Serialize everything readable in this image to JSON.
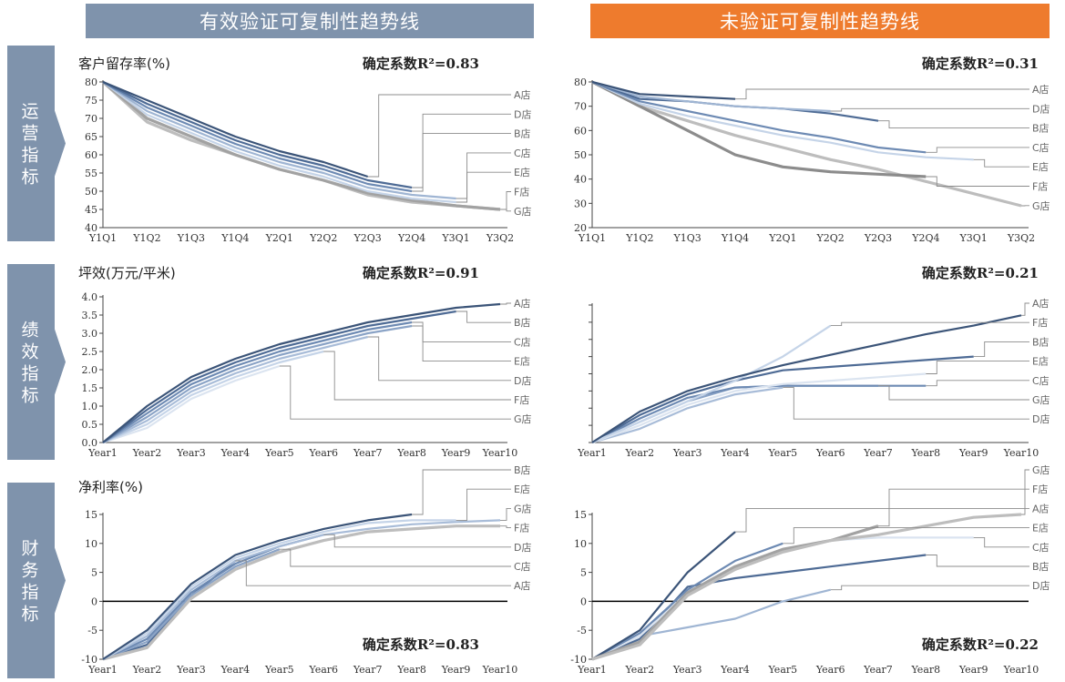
{
  "headers": {
    "left": "有效验证可复制性趋势线",
    "right": "未验证可复制性趋势线"
  },
  "row_labels": [
    "运营指标",
    "绩效指标",
    "财务指标"
  ],
  "colors": {
    "header_left": "#7f93ac",
    "header_right": "#ee7b2d",
    "side_band": "#7f93ac",
    "leader_line": "#8c8c8c",
    "zero_axis": "#000000"
  },
  "chart_data": [
    {
      "id": "ops-valid",
      "type": "line",
      "title": "客户留存率(%)",
      "annotation": "确定系数R²=0.83",
      "categories": [
        "Y1Q1",
        "Y1Q2",
        "Y1Q3",
        "Y1Q4",
        "Y2Q1",
        "Y2Q2",
        "Y2Q3",
        "Y2Q4",
        "Y3Q1",
        "Y3Q2"
      ],
      "ylim": [
        40,
        80
      ],
      "yticks": [
        40,
        45,
        50,
        55,
        60,
        65,
        70,
        75,
        80
      ],
      "series": [
        {
          "name": "A店",
          "color": "#3b5478",
          "values": [
            80,
            75,
            70,
            65,
            61,
            58,
            54,
            null,
            null,
            null
          ]
        },
        {
          "name": "D店",
          "color": "#4e6b95",
          "values": [
            80,
            74,
            69,
            64,
            60,
            57,
            53,
            51,
            null,
            null
          ]
        },
        {
          "name": "B店",
          "color": "#6d8ab3",
          "values": [
            80,
            73,
            68,
            63,
            59,
            56,
            52,
            50,
            null,
            null
          ]
        },
        {
          "name": "C店",
          "color": "#9fb5d3",
          "values": [
            80,
            72,
            67,
            62,
            58,
            55,
            51,
            49,
            48,
            null
          ]
        },
        {
          "name": "E店",
          "color": "#c5d4e8",
          "values": [
            80,
            71,
            66,
            61,
            57,
            54,
            50,
            48,
            47,
            null
          ]
        },
        {
          "name": "F店",
          "color": "#a2a2a2",
          "values": [
            80,
            70,
            65,
            60,
            56,
            53,
            49.5,
            47.5,
            46,
            45
          ]
        },
        {
          "name": "G店",
          "color": "#bdbdbd",
          "values": [
            80,
            69,
            64,
            60,
            56,
            53,
            49,
            47,
            46,
            45
          ]
        }
      ],
      "legend_order": [
        "A店",
        "D店",
        "B店",
        "C店",
        "E店",
        "F店",
        "G店"
      ]
    },
    {
      "id": "ops-unvalid",
      "type": "line",
      "annotation": "确定系数R²=0.31",
      "categories": [
        "Y1Q1",
        "Y1Q2",
        "Y1Q3",
        "Y1Q4",
        "Y2Q1",
        "Y2Q2",
        "Y2Q3",
        "Y2Q4",
        "Y3Q1",
        "Y3Q2"
      ],
      "ylim": [
        20,
        80
      ],
      "yticks": [
        20,
        30,
        40,
        50,
        60,
        70,
        80
      ],
      "series": [
        {
          "name": "A店",
          "color": "#3b5478",
          "values": [
            80,
            75,
            74,
            73,
            null,
            null,
            null,
            null,
            null,
            null
          ]
        },
        {
          "name": "D店",
          "color": "#9fb5d3",
          "values": [
            80,
            74,
            72,
            70,
            69,
            68,
            null,
            null,
            null,
            null
          ]
        },
        {
          "name": "B店",
          "color": "#4e6b95",
          "values": [
            80,
            73,
            72,
            70,
            69,
            67,
            64,
            null,
            null,
            null
          ]
        },
        {
          "name": "C店",
          "color": "#6d8ab3",
          "values": [
            80,
            72,
            68,
            64,
            60,
            57,
            53,
            51,
            null,
            null
          ]
        },
        {
          "name": "E店",
          "color": "#c5d4e8",
          "values": [
            80,
            71,
            66,
            62,
            58,
            55,
            51,
            49,
            48,
            null
          ]
        },
        {
          "name": "F店",
          "color": "#8c8c8c",
          "values": [
            80,
            70,
            60,
            50,
            45,
            43,
            42,
            41,
            null,
            null
          ]
        },
        {
          "name": "G店",
          "color": "#bdbdbd",
          "values": [
            80,
            70,
            64,
            58,
            53,
            48,
            44,
            39,
            34,
            29
          ]
        }
      ],
      "legend_order": [
        "A店",
        "D店",
        "B店",
        "C店",
        "E店",
        "F店",
        "G店"
      ]
    },
    {
      "id": "perf-valid",
      "type": "line",
      "title": "坪效(万元/平米)",
      "annotation": "确定系数R²=0.91",
      "categories": [
        "Year1",
        "Year2",
        "Year3",
        "Year4",
        "Year5",
        "Year6",
        "Year7",
        "Year8",
        "Year9",
        "Year10"
      ],
      "ylim": [
        0,
        4
      ],
      "yticks": [
        0,
        0.5,
        1,
        1.5,
        2,
        2.5,
        3,
        3.5,
        4
      ],
      "ytick_labels": [
        "0.0",
        "0.5",
        "1.0",
        "1.5",
        "2.0",
        "2.5",
        "3.0",
        "3.5",
        "4.0"
      ],
      "series": [
        {
          "name": "A店",
          "color": "#3b5478",
          "values": [
            0,
            1.0,
            1.8,
            2.3,
            2.7,
            3.0,
            3.3,
            3.5,
            3.7,
            3.8
          ]
        },
        {
          "name": "B店",
          "color": "#4e6b95",
          "values": [
            0,
            0.9,
            1.7,
            2.2,
            2.6,
            2.9,
            3.2,
            3.4,
            3.6,
            null
          ]
        },
        {
          "name": "C店",
          "color": "#6d8ab3",
          "values": [
            0,
            0.8,
            1.6,
            2.1,
            2.5,
            2.8,
            3.1,
            3.3,
            null,
            null
          ]
        },
        {
          "name": "E店",
          "color": "#8aa3c6",
          "values": [
            0,
            0.7,
            1.5,
            2.0,
            2.4,
            2.7,
            3.0,
            3.2,
            null,
            null
          ]
        },
        {
          "name": "D店",
          "color": "#a8bcd8",
          "values": [
            0,
            0.6,
            1.4,
            1.9,
            2.3,
            2.6,
            2.9,
            null,
            null,
            null
          ]
        },
        {
          "name": "F店",
          "color": "#c5d4e8",
          "values": [
            0,
            0.5,
            1.3,
            1.8,
            2.2,
            2.5,
            null,
            null,
            null,
            null
          ]
        },
        {
          "name": "G店",
          "color": "#dbe4f0",
          "values": [
            0,
            0.4,
            1.2,
            1.7,
            2.1,
            null,
            null,
            null,
            null,
            null
          ]
        }
      ],
      "legend_order": [
        "A店",
        "B店",
        "C店",
        "E店",
        "D店",
        "F店",
        "G店"
      ]
    },
    {
      "id": "perf-unvalid",
      "type": "line",
      "annotation": "确定系数R²=0.21",
      "categories": [
        "Year1",
        "Year2",
        "Year3",
        "Year4",
        "Year5",
        "Year6",
        "Year7",
        "Year8",
        "Year9",
        "Year10"
      ],
      "ylim": [
        0,
        4
      ],
      "yticks": [
        0,
        0.5,
        1,
        1.5,
        2,
        2.5,
        3,
        3.5,
        4
      ],
      "ytick_labels": [
        "",
        "",
        "",
        "",
        "",
        "",
        "",
        "",
        ""
      ],
      "series": [
        {
          "name": "A店",
          "color": "#3b5478",
          "values": [
            0,
            0.9,
            1.5,
            1.9,
            2.25,
            2.55,
            2.85,
            3.15,
            3.4,
            3.7
          ]
        },
        {
          "name": "F店",
          "color": "#c5d4e8",
          "values": [
            0,
            0.6,
            1.2,
            1.8,
            2.5,
            3.4,
            null,
            null,
            null,
            null
          ]
        },
        {
          "name": "B店",
          "color": "#4e6b95",
          "values": [
            0,
            0.8,
            1.4,
            1.8,
            2.1,
            2.2,
            2.3,
            2.4,
            2.5,
            null
          ]
        },
        {
          "name": "E店",
          "color": "#dbe4f0",
          "values": [
            0,
            0.5,
            1.1,
            1.5,
            1.7,
            1.8,
            1.9,
            2.0,
            null,
            null
          ]
        },
        {
          "name": "C店",
          "color": "#6d8ab3",
          "values": [
            0,
            0.7,
            1.3,
            1.6,
            1.65,
            1.65,
            1.65,
            1.65,
            null,
            null
          ]
        },
        {
          "name": "G店",
          "color": "#8aa3c6",
          "values": [
            0,
            0.6,
            1.2,
            1.6,
            1.65,
            1.65,
            1.65,
            null,
            null,
            null
          ]
        },
        {
          "name": "D店",
          "color": "#a8bcd8",
          "values": [
            0,
            0.4,
            1.0,
            1.4,
            1.6,
            null,
            null,
            null,
            null,
            null
          ]
        }
      ],
      "legend_order": [
        "A店",
        "F店",
        "B店",
        "E店",
        "C店",
        "G店",
        "D店"
      ]
    },
    {
      "id": "fin-valid",
      "type": "line",
      "title": "净利率(%)",
      "annotation": "确定系数R²=0.83",
      "categories": [
        "Year1",
        "Year2",
        "Year3",
        "Year4",
        "Year5",
        "Year6",
        "Year7",
        "Year8",
        "Year9",
        "Year10"
      ],
      "ylim": [
        -10,
        15
      ],
      "yticks": [
        -10,
        -5,
        0,
        5,
        10,
        15
      ],
      "series": [
        {
          "name": "B店",
          "color": "#3b5478",
          "values": [
            -10,
            -5,
            3,
            8,
            10.5,
            12.5,
            14,
            15,
            null,
            null
          ]
        },
        {
          "name": "E店",
          "color": "#c5d4e8",
          "values": [
            -10,
            -5.5,
            2.5,
            7.5,
            10,
            12,
            13.5,
            14,
            14,
            null
          ]
        },
        {
          "name": "G店",
          "color": "#a8bcd8",
          "values": [
            -10,
            -6,
            2,
            7,
            9.5,
            11.5,
            12.5,
            13.3,
            13.7,
            14
          ]
        },
        {
          "name": "F店",
          "color": "#bdbdbd",
          "values": [
            -10,
            -8,
            0.5,
            5.5,
            8.5,
            10.5,
            12,
            12.5,
            13,
            13
          ]
        },
        {
          "name": "D店",
          "color": "#6d8ab3",
          "values": [
            -10,
            -6.5,
            1.5,
            6.5,
            9.5,
            11.5,
            null,
            null,
            null,
            null
          ]
        },
        {
          "name": "C店",
          "color": "#8aa3c6",
          "values": [
            -10,
            -7,
            1,
            6,
            9,
            null,
            null,
            null,
            null,
            null
          ]
        },
        {
          "name": "A店",
          "color": "#4e6b95",
          "values": [
            -10,
            -7.5,
            1,
            7,
            null,
            null,
            null,
            null,
            null,
            null
          ]
        }
      ],
      "legend_order": [
        "B店",
        "E店",
        "G店",
        "F店",
        "D店",
        "C店",
        "A店"
      ]
    },
    {
      "id": "fin-unvalid",
      "type": "line",
      "annotation": "确定系数R²=0.22",
      "categories": [
        "Year1",
        "Year2",
        "Year3",
        "Year4",
        "Year5",
        "Year6",
        "Year7",
        "Year8",
        "Year9",
        "Year10"
      ],
      "ylim": [
        -10,
        15
      ],
      "yticks": [
        -10,
        -5,
        0,
        5,
        10,
        15
      ],
      "series": [
        {
          "name": "G店",
          "color": "#bdbdbd",
          "values": [
            -10,
            -7.5,
            1,
            5.5,
            8.5,
            10.5,
            11.5,
            13,
            14.5,
            15
          ]
        },
        {
          "name": "F店",
          "color": "#a2a2a2",
          "values": [
            -10,
            -7,
            1.5,
            6,
            9,
            10.5,
            13,
            null,
            null,
            null
          ]
        },
        {
          "name": "A店",
          "color": "#3b5478",
          "values": [
            -10,
            -5,
            5,
            12,
            null,
            null,
            null,
            null,
            null,
            null
          ]
        },
        {
          "name": "E店",
          "color": "#6d8ab3",
          "values": [
            -10,
            -5.5,
            2,
            7,
            10,
            null,
            null,
            null,
            null,
            null
          ]
        },
        {
          "name": "C店",
          "color": "#dbe4f0",
          "values": [
            -10,
            -6,
            1.5,
            6,
            9,
            10.5,
            11,
            11,
            11,
            null
          ]
        },
        {
          "name": "B店",
          "color": "#4e6b95",
          "values": [
            -10,
            -6.5,
            2.5,
            4,
            5,
            6,
            7,
            8,
            null,
            null
          ]
        },
        {
          "name": "D店",
          "color": "#9fb5d3",
          "values": [
            -10,
            -6,
            -4.5,
            -3,
            0,
            2,
            null,
            null,
            null,
            null
          ]
        }
      ],
      "legend_order": [
        "G店",
        "F店",
        "A店",
        "E店",
        "C店",
        "B店",
        "D店"
      ]
    }
  ]
}
